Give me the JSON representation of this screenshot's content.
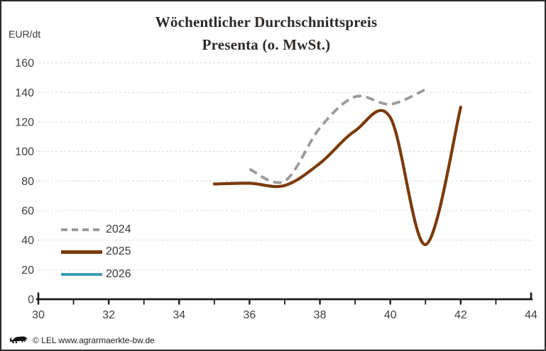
{
  "title": {
    "line1": "Wöchentlicher Durchschnittspreis",
    "line2": "Presenta (o. MwSt.)"
  },
  "y_axis_unit": "EUR/dt",
  "footer": {
    "copyright": "© LEL www.agrarmaerkte-bw.de",
    "logo": "bw-lion-logo"
  },
  "colors": {
    "frame_border": "#2b2b2b",
    "axis": "#1a1a1a",
    "gridline": "#d8d8d8",
    "tick_text": "#3f3f3f",
    "title_text": "#2d2926"
  },
  "chart_data": {
    "type": "line",
    "title": "Wöchentlicher Durchschnittspreis Presenta (o. MwSt.)",
    "xlabel": "",
    "ylabel": "EUR/dt",
    "xlim": [
      30,
      44
    ],
    "ylim": [
      0,
      160
    ],
    "x_ticks_major": [
      30,
      32,
      34,
      36,
      38,
      40,
      42,
      44
    ],
    "x_ticks_minor": [
      31,
      33,
      35,
      37,
      39,
      41,
      43
    ],
    "y_ticks": [
      0,
      20,
      40,
      60,
      80,
      100,
      120,
      140,
      160
    ],
    "grid": "horizontal-dashed",
    "legend_position": "left-middle",
    "series": [
      {
        "name": "2024",
        "color": "#9a9a9a",
        "style": "dashed",
        "x": [
          36,
          37,
          38,
          39,
          40,
          41
        ],
        "values": [
          88,
          80,
          116,
          137,
          132,
          142
        ]
      },
      {
        "name": "2025",
        "color": "#7b3a0a",
        "style": "solid",
        "x": [
          35,
          36,
          37,
          38,
          39,
          40,
          41,
          42
        ],
        "values": [
          78,
          78.5,
          77,
          92,
          114,
          123,
          37,
          130
        ]
      },
      {
        "name": "2026",
        "color": "#3d9db4",
        "style": "solid",
        "x": [],
        "values": []
      }
    ]
  }
}
